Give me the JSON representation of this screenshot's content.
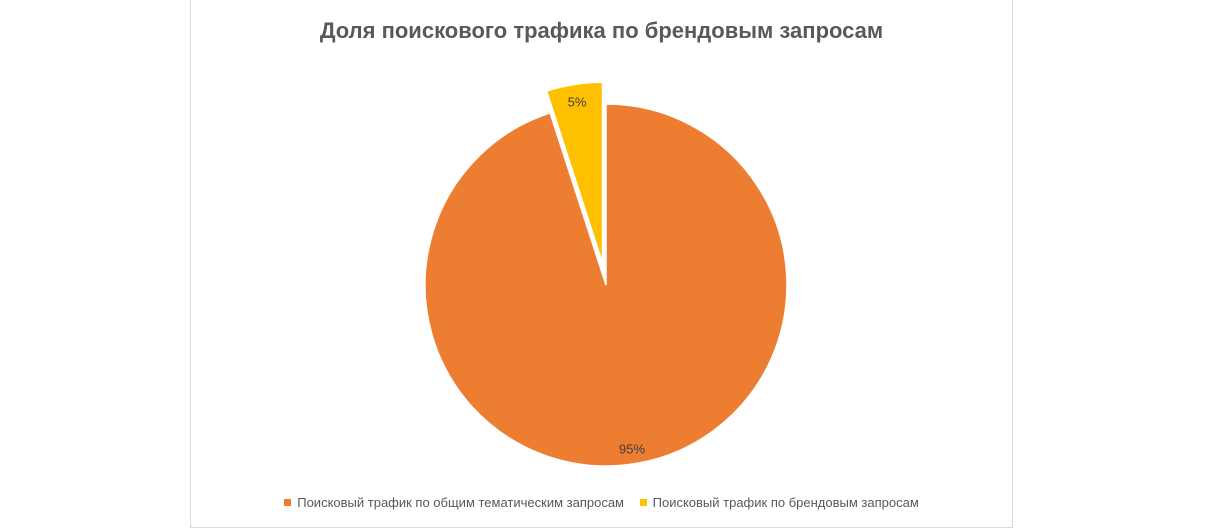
{
  "chart_data": {
    "type": "pie",
    "title": "Доля поискового трафика по брендовым запросам",
    "categories": [
      "Поисковый трафик по общим тематическим запросам",
      "Поисковый трафик по брендовым запросам"
    ],
    "values": [
      95,
      5
    ],
    "labels": [
      "95%",
      "5%"
    ],
    "colors": [
      "#ED7D31",
      "#FFC000"
    ],
    "exploded": [
      false,
      true
    ],
    "legend_position": "bottom"
  }
}
